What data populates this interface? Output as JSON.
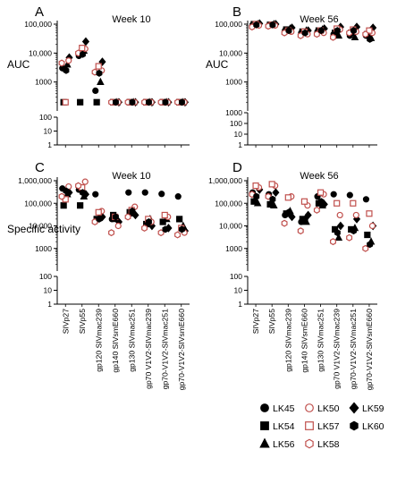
{
  "figure": {
    "legend": [
      {
        "id": "LK45",
        "label": "LK45",
        "marker": "circle-filled",
        "color": "#000000"
      },
      {
        "id": "LK50",
        "label": "LK50",
        "marker": "circle-open",
        "color": "#c0504d"
      },
      {
        "id": "LK59",
        "label": "LK59",
        "marker": "diamond-filled",
        "color": "#000000"
      },
      {
        "id": "LK54",
        "label": "LK54",
        "marker": "square-filled",
        "color": "#000000"
      },
      {
        "id": "LK57",
        "label": "LK57",
        "marker": "square-open",
        "color": "#c0504d"
      },
      {
        "id": "LK60",
        "label": "LK60",
        "marker": "hexagon-filled",
        "color": "#000000"
      },
      {
        "id": "LK56",
        "label": "LK56",
        "marker": "triangle-filled",
        "color": "#000000"
      },
      {
        "id": "LK58",
        "label": "LK58",
        "marker": "hexagon-open",
        "color": "#c0504d"
      }
    ],
    "colors": {
      "filled": "#000000",
      "open": "#c0504d"
    }
  },
  "chart_data": [
    {
      "panel": "A",
      "title": "Week 10",
      "type": "scatter",
      "ylabel": "AUC",
      "y_scale": "log-broken",
      "y_upper_ticks": [
        "100,000",
        "10,000",
        "1000"
      ],
      "y_lower_ticks": [
        "100",
        "10",
        "1"
      ],
      "ylim": [
        1,
        100000
      ],
      "categories": [
        "SIVp27",
        "SIVp55",
        "gp120 SIVmac239",
        "gp140 SIVsmE660",
        "gp130 SIVmac251",
        "gp70 V1V2-SIVmac239",
        "gp70-V1V2-SIVmac251",
        "gp70-V1V2-SIVsmE660"
      ],
      "show_category_labels": false,
      "series": [
        {
          "name": "LK45",
          "values": [
            3000,
            8000,
            500,
            200,
            200,
            200,
            200,
            200
          ]
        },
        {
          "name": "LK54",
          "values": [
            200,
            200,
            200,
            200,
            200,
            200,
            200,
            200
          ]
        },
        {
          "name": "LK56",
          "values": [
            4000,
            12000,
            1000,
            200,
            200,
            200,
            200,
            200
          ]
        },
        {
          "name": "LK59",
          "values": [
            7000,
            25000,
            5000,
            200,
            200,
            200,
            200,
            200
          ]
        },
        {
          "name": "LK50",
          "values": [
            5500,
            14000,
            2500,
            200,
            200,
            200,
            200,
            200
          ]
        },
        {
          "name": "LK57",
          "values": [
            200,
            15000,
            3500,
            200,
            200,
            200,
            200,
            200
          ]
        },
        {
          "name": "LK58",
          "values": [
            4500,
            10000,
            2200,
            200,
            200,
            200,
            200,
            200
          ]
        },
        {
          "name": "LK60",
          "values": [
            2500,
            9000,
            2000,
            200,
            200,
            200,
            200,
            200
          ]
        }
      ]
    },
    {
      "panel": "B",
      "title": "Week 56",
      "type": "scatter",
      "ylabel": "AUC",
      "y_scale": "log-broken",
      "y_upper_ticks": [
        "100,000",
        "10,000",
        "1000"
      ],
      "y_lower_ticks": [
        "1000",
        "100",
        "10",
        "1"
      ],
      "ylim": [
        1,
        100000
      ],
      "categories": [
        "SIVp27",
        "SIVp55",
        "gp120 SIVmac239",
        "gp140 SIVsmE660",
        "gp130 SIVmac251",
        "gp70 V1V2-SIVmac239",
        "gp70-V1V2-SIVmac251",
        "gp70-V1V2-SIVsmE660"
      ],
      "show_category_labels": false,
      "series": [
        {
          "name": "LK45",
          "values": [
            95000,
            90000,
            60000,
            50000,
            55000,
            45000,
            40000,
            40000
          ]
        },
        {
          "name": "LK54",
          "values": [
            100000,
            95000,
            65000,
            55000,
            60000,
            50000,
            50000,
            45000
          ]
        },
        {
          "name": "LK56",
          "values": [
            100000,
            100000,
            70000,
            60000,
            65000,
            40000,
            35000,
            33000
          ]
        },
        {
          "name": "LK59",
          "values": [
            105000,
            100000,
            75000,
            60000,
            70000,
            80000,
            80000,
            75000
          ]
        },
        {
          "name": "LK50",
          "values": [
            90000,
            90000,
            55000,
            45000,
            50000,
            65000,
            55000,
            50000
          ]
        },
        {
          "name": "LK57",
          "values": [
            100000,
            95000,
            60000,
            55000,
            60000,
            70000,
            65000,
            60000
          ]
        },
        {
          "name": "LK58",
          "values": [
            80000,
            85000,
            50000,
            40000,
            45000,
            35000,
            50000,
            45000
          ]
        },
        {
          "name": "LK60",
          "values": [
            95000,
            95000,
            60000,
            50000,
            60000,
            60000,
            60000,
            30000
          ]
        }
      ]
    },
    {
      "panel": "C",
      "title": "Week 10",
      "type": "scatter",
      "ylabel": "Specific activity",
      "y_scale": "log-broken",
      "y_upper_ticks": [
        "1,000,000",
        "100,000",
        "10,000",
        "1000"
      ],
      "y_lower_ticks": [
        "100",
        "10",
        "1"
      ],
      "ylim": [
        1,
        1000000
      ],
      "categories": [
        "SIVp27",
        "SIVp55",
        "gp120 SIVmac239",
        "gp140 SIVsmE660",
        "gp130 SIVmac251",
        "gp70 V1V2-SIVmac239",
        "gp70-V1V2-SIVmac251",
        "gp70-V1V2-SIVsmE660"
      ],
      "show_category_labels": false,
      "series": [
        {
          "name": "LK45",
          "values": [
            450000,
            400000,
            250000,
            20000,
            300000,
            300000,
            260000,
            200000
          ]
        },
        {
          "name": "LK54",
          "values": [
            80000,
            80000,
            20000,
            30000,
            40000,
            12000,
            15000,
            20000
          ]
        },
        {
          "name": "LK56",
          "values": [
            250000,
            200000,
            30000,
            20000,
            35000,
            20000,
            20000,
            10000
          ]
        },
        {
          "name": "LK59",
          "values": [
            300000,
            250000,
            25000,
            15000,
            30000,
            10000,
            8000,
            6000
          ]
        },
        {
          "name": "LK50",
          "values": [
            550000,
            900000,
            45000,
            10000,
            70000,
            15000,
            25000,
            5000
          ]
        },
        {
          "name": "LK57",
          "values": [
            150000,
            500000,
            40000,
            25000,
            50000,
            20000,
            30000,
            8000
          ]
        },
        {
          "name": "LK58",
          "values": [
            200000,
            600000,
            15000,
            5000,
            25000,
            8000,
            5000,
            4000
          ]
        },
        {
          "name": "LK60",
          "values": [
            350000,
            300000,
            20000,
            25000,
            45000,
            15000,
            7000,
            7000
          ]
        }
      ]
    },
    {
      "panel": "D",
      "title": "Week 56",
      "type": "scatter",
      "ylabel": "",
      "y_scale": "log-broken",
      "y_upper_ticks": [
        "1,000,000",
        "100,000",
        "10,000",
        "1000"
      ],
      "y_lower_ticks": [
        "100",
        "10",
        "1"
      ],
      "ylim": [
        1,
        1000000
      ],
      "categories": [
        "SIVp27",
        "SIVp55",
        "gp120 SIVmac239",
        "gp140 SIVsmE660",
        "gp130 SIVmac251",
        "gp70 V1V2-SIVmac239",
        "gp70-V1V2-SIVmac251",
        "gp70-V1V2-SIVsmE660"
      ],
      "show_category_labels": true,
      "series": [
        {
          "name": "LK45",
          "values": [
            300000,
            250000,
            30000,
            15000,
            200000,
            250000,
            230000,
            150000
          ]
        },
        {
          "name": "LK54",
          "values": [
            120000,
            90000,
            35000,
            20000,
            100000,
            7000,
            7000,
            4000
          ]
        },
        {
          "name": "LK56",
          "values": [
            100000,
            80000,
            45000,
            15000,
            80000,
            3000,
            8000,
            2000
          ]
        },
        {
          "name": "LK59",
          "values": [
            400000,
            300000,
            25000,
            30000,
            90000,
            10000,
            20000,
            10000
          ]
        },
        {
          "name": "LK50",
          "values": [
            500000,
            600000,
            200000,
            80000,
            250000,
            30000,
            30000,
            10000
          ]
        },
        {
          "name": "LK57",
          "values": [
            600000,
            700000,
            180000,
            120000,
            300000,
            100000,
            100000,
            35000
          ]
        },
        {
          "name": "LK58",
          "values": [
            250000,
            200000,
            13000,
            6000,
            50000,
            2000,
            3000,
            1000
          ]
        },
        {
          "name": "LK60",
          "values": [
            200000,
            150000,
            40000,
            20000,
            120000,
            5000,
            6000,
            1500
          ]
        }
      ]
    }
  ]
}
